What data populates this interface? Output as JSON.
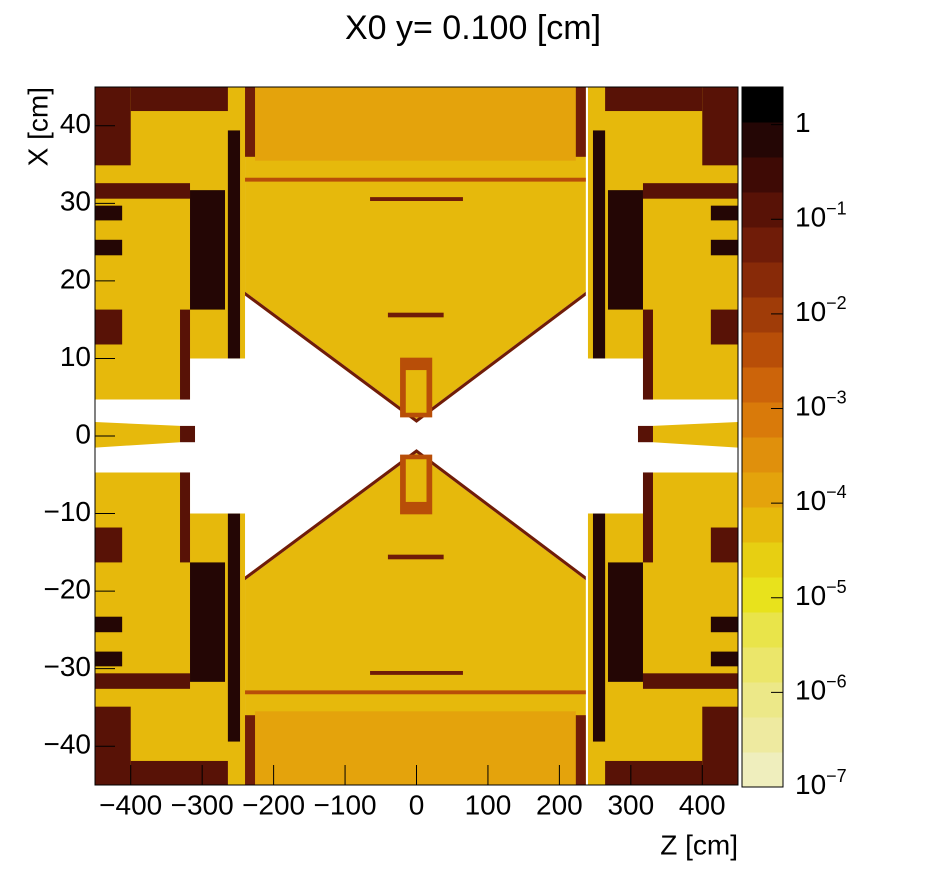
{
  "chart_data": {
    "type": "heatmap",
    "title": "X0 y=  0.100 [cm]",
    "xlabel": "Z [cm]",
    "ylabel": "X [cm]",
    "xlim": [
      -450,
      450
    ],
    "ylim": [
      -45,
      45
    ],
    "zlim": [
      1e-07,
      2.5
    ],
    "zlog": true,
    "xticks": [
      {
        "value": -400,
        "label": "−400"
      },
      {
        "value": -300,
        "label": "−300"
      },
      {
        "value": -200,
        "label": "−200"
      },
      {
        "value": -100,
        "label": "−100"
      },
      0,
      100,
      200,
      300,
      400
    ],
    "yticks": [
      {
        "value": -40,
        "label": "−40"
      },
      {
        "value": -30,
        "label": "−30"
      },
      {
        "value": -20,
        "label": "−20"
      },
      {
        "value": -10,
        "label": "−10"
      },
      0,
      10,
      20,
      30,
      40
    ],
    "zticks": [
      1,
      {
        "value": 0.1,
        "label": "10",
        "exponent": "−1"
      },
      {
        "value": 0.01,
        "label": "10",
        "exponent": "−2"
      },
      {
        "value": 0.001,
        "label": "10",
        "exponent": "−3"
      },
      {
        "value": 0.0001,
        "label": "10",
        "exponent": "−4"
      },
      {
        "value": 1e-05,
        "label": "10",
        "exponent": "−5"
      },
      {
        "value": 1e-06,
        "label": "10",
        "exponent": "−6"
      },
      {
        "value": 1e-07,
        "label": "10",
        "exponent": "−7"
      }
    ],
    "palette": [
      "#efeebd",
      "#eeeaa0",
      "#ece888",
      "#ebe66a",
      "#e9e44a",
      "#e8e21c",
      "#e7cf12",
      "#e6b90c",
      "#e4a30c",
      "#e0900c",
      "#d97a0a",
      "#cc640a",
      "#b84e08",
      "#a03c08",
      "#882a08",
      "#701c08",
      "#581206",
      "#3e0a05",
      "#240605",
      "#000000"
    ],
    "regions": [
      {
        "points": [
          [
            -450,
            4.7
          ],
          [
            -450,
            45
          ],
          [
            -240,
            45
          ],
          [
            -240,
            10
          ],
          [
            -317,
            10
          ],
          [
            -317,
            4.7
          ]
        ],
        "value": 6e-05
      },
      {
        "z": [
          -450,
          -400
        ],
        "x": [
          34.9,
          45
        ],
        "value": 0.15
      },
      {
        "z": [
          -400,
          -264
        ],
        "x": [
          41.9,
          45
        ],
        "value": 0.15
      },
      {
        "z": [
          -317,
          -268
        ],
        "x": [
          16.3,
          31.7
        ],
        "value": 1
      },
      {
        "z": [
          -450,
          -317
        ],
        "x": [
          30.6,
          32.6
        ],
        "value": 0.15
      },
      {
        "z": [
          -450,
          -412
        ],
        "x": [
          27.8,
          29.7
        ],
        "value": 1
      },
      {
        "z": [
          -450,
          -412
        ],
        "x": [
          23.3,
          25.3
        ],
        "value": 1
      },
      {
        "z": [
          -450,
          -412
        ],
        "x": [
          11.8,
          16.3
        ],
        "value": 0.15
      },
      {
        "z": [
          -331,
          -317
        ],
        "x": [
          4.7,
          16.3
        ],
        "value": 0.15
      },
      {
        "z": [
          -264,
          -247
        ],
        "x": [
          10,
          39.4
        ],
        "value": 1
      },
      {
        "points": [
          [
            -450,
            -4.7
          ],
          [
            -450,
            -45
          ],
          [
            -240,
            -45
          ],
          [
            -240,
            -10
          ],
          [
            -317,
            -10
          ],
          [
            -317,
            -4.7
          ]
        ],
        "value": 6e-05
      },
      {
        "z": [
          -450,
          -400
        ],
        "x": [
          -45,
          -34.9
        ],
        "value": 0.15
      },
      {
        "z": [
          -400,
          -264
        ],
        "x": [
          -45,
          -41.9
        ],
        "value": 0.15
      },
      {
        "z": [
          -317,
          -268
        ],
        "x": [
          -31.7,
          -16.3
        ],
        "value": 1
      },
      {
        "z": [
          -450,
          -317
        ],
        "x": [
          -32.6,
          -30.6
        ],
        "value": 0.15
      },
      {
        "z": [
          -450,
          -412
        ],
        "x": [
          -29.7,
          -27.8
        ],
        "value": 1
      },
      {
        "z": [
          -450,
          -412
        ],
        "x": [
          -25.3,
          -23.3
        ],
        "value": 1
      },
      {
        "z": [
          -450,
          -412
        ],
        "x": [
          -16.3,
          -11.8
        ],
        "value": 0.15
      },
      {
        "z": [
          -331,
          -317
        ],
        "x": [
          -16.3,
          -4.7
        ],
        "value": 0.15
      },
      {
        "z": [
          -264,
          -247
        ],
        "x": [
          -39.4,
          -10
        ],
        "value": 1
      },
      {
        "points": [
          [
            450,
            4.7
          ],
          [
            450,
            45
          ],
          [
            240,
            45
          ],
          [
            240,
            10
          ],
          [
            317,
            10
          ],
          [
            317,
            4.7
          ]
        ],
        "value": 6e-05
      },
      {
        "z": [
          400,
          450
        ],
        "x": [
          34.9,
          45
        ],
        "value": 0.15
      },
      {
        "z": [
          264,
          400
        ],
        "x": [
          41.9,
          45
        ],
        "value": 0.15
      },
      {
        "z": [
          268,
          317
        ],
        "x": [
          16.3,
          31.7
        ],
        "value": 1
      },
      {
        "z": [
          317,
          450
        ],
        "x": [
          30.6,
          32.6
        ],
        "value": 0.15
      },
      {
        "z": [
          412,
          450
        ],
        "x": [
          27.8,
          29.7
        ],
        "value": 1
      },
      {
        "z": [
          412,
          450
        ],
        "x": [
          23.3,
          25.3
        ],
        "value": 1
      },
      {
        "z": [
          412,
          450
        ],
        "x": [
          11.8,
          16.3
        ],
        "value": 0.15
      },
      {
        "z": [
          317,
          331
        ],
        "x": [
          4.7,
          16.3
        ],
        "value": 0.15
      },
      {
        "z": [
          247,
          264
        ],
        "x": [
          10,
          39.4
        ],
        "value": 1
      },
      {
        "points": [
          [
            450,
            -4.7
          ],
          [
            450,
            -45
          ],
          [
            240,
            -45
          ],
          [
            240,
            -10
          ],
          [
            317,
            -10
          ],
          [
            317,
            -4.7
          ]
        ],
        "value": 6e-05
      },
      {
        "z": [
          400,
          450
        ],
        "x": [
          -45,
          -34.9
        ],
        "value": 0.15
      },
      {
        "z": [
          264,
          400
        ],
        "x": [
          -45,
          -41.9
        ],
        "value": 0.15
      },
      {
        "z": [
          268,
          317
        ],
        "x": [
          -31.7,
          -16.3
        ],
        "value": 1
      },
      {
        "z": [
          317,
          450
        ],
        "x": [
          -32.6,
          -30.6
        ],
        "value": 0.15
      },
      {
        "z": [
          412,
          450
        ],
        "x": [
          -29.7,
          -27.8
        ],
        "value": 1
      },
      {
        "z": [
          412,
          450
        ],
        "x": [
          -25.3,
          -23.3
        ],
        "value": 1
      },
      {
        "z": [
          412,
          450
        ],
        "x": [
          -16.3,
          -11.8
        ],
        "value": 0.15
      },
      {
        "z": [
          317,
          331
        ],
        "x": [
          -16.3,
          -4.7
        ],
        "value": 0.15
      },
      {
        "z": [
          247,
          264
        ],
        "x": [
          -39.4,
          -10
        ],
        "value": 1
      },
      {
        "points": [
          [
            -450,
            -1.5
          ],
          [
            -450,
            1.8
          ],
          [
            -331,
            1.3
          ],
          [
            -331,
            -0.8
          ]
        ],
        "value": 6e-05
      },
      {
        "z": [
          -331,
          -310
        ],
        "x": [
          -0.8,
          1.3
        ],
        "value": 0.15
      },
      {
        "points": [
          [
            450,
            -1.5
          ],
          [
            450,
            1.8
          ],
          [
            331,
            1.3
          ],
          [
            331,
            -0.8
          ]
        ],
        "value": 6e-05
      },
      {
        "z": [
          310,
          331
        ],
        "x": [
          -0.8,
          1.3
        ],
        "value": 0.15
      },
      {
        "points": [
          [
            -240,
            18.6
          ],
          [
            -240,
            45
          ],
          [
            237,
            45
          ],
          [
            237,
            18.6
          ],
          [
            0,
            2.2
          ]
        ],
        "value": 6e-05
      },
      {
        "z": [
          -226,
          223
        ],
        "x": [
          35.5,
          45
        ],
        "value": 0.00015
      },
      {
        "z": [
          -240,
          -226
        ],
        "x": [
          36,
          45
        ],
        "value": 0.05
      },
      {
        "z": [
          223,
          237
        ],
        "x": [
          36,
          45
        ],
        "value": 0.05
      },
      {
        "points": [
          [
            -240,
            18.6
          ],
          [
            0,
            2.2
          ],
          [
            0,
            1.7
          ],
          [
            -240,
            18.1
          ]
        ],
        "value": 0.05
      },
      {
        "points": [
          [
            237,
            18.6
          ],
          [
            0,
            2.2
          ],
          [
            0,
            1.7
          ],
          [
            237,
            18.1
          ]
        ],
        "value": 0.05
      },
      {
        "z": [
          -240,
          237
        ],
        "x": [
          32.8,
          33.3
        ],
        "value": 0.004
      },
      {
        "z": [
          -40,
          38
        ],
        "x": [
          15.3,
          15.9
        ],
        "value": 0.05
      },
      {
        "z": [
          -65,
          65
        ],
        "x": [
          30.3,
          30.8
        ],
        "value": 0.05
      },
      {
        "z": [
          -23,
          22
        ],
        "x": [
          2.4,
          10.1
        ],
        "value": 0.004
      },
      {
        "z": [
          -15,
          14
        ],
        "x": [
          3,
          8.5
        ],
        "value": 6e-05
      },
      {
        "points": [
          [
            -240,
            -18.6
          ],
          [
            -240,
            -45
          ],
          [
            237,
            -45
          ],
          [
            237,
            -18.6
          ],
          [
            0,
            -2.2
          ]
        ],
        "value": 6e-05
      },
      {
        "z": [
          -226,
          223
        ],
        "x": [
          -45,
          -35.5
        ],
        "value": 0.00015
      },
      {
        "z": [
          -240,
          -226
        ],
        "x": [
          -45,
          -36
        ],
        "value": 0.05
      },
      {
        "z": [
          223,
          237
        ],
        "x": [
          -45,
          -36
        ],
        "value": 0.05
      },
      {
        "points": [
          [
            -240,
            -18.6
          ],
          [
            0,
            -2.2
          ],
          [
            0,
            -1.7
          ],
          [
            -240,
            -18.1
          ]
        ],
        "value": 0.05
      },
      {
        "points": [
          [
            237,
            -18.6
          ],
          [
            0,
            -2.2
          ],
          [
            0,
            -1.7
          ],
          [
            237,
            -18.1
          ]
        ],
        "value": 0.05
      },
      {
        "z": [
          -240,
          237
        ],
        "x": [
          -33.3,
          -32.8
        ],
        "value": 0.004
      },
      {
        "z": [
          -40,
          38
        ],
        "x": [
          -15.9,
          -15.3
        ],
        "value": 0.05
      },
      {
        "z": [
          -65,
          65
        ],
        "x": [
          -30.8,
          -30.3
        ],
        "value": 0.05
      },
      {
        "z": [
          -23,
          22
        ],
        "x": [
          -10.1,
          -2.4
        ],
        "value": 0.004
      },
      {
        "z": [
          -15,
          14
        ],
        "x": [
          -8.5,
          -3
        ],
        "value": 6e-05
      }
    ]
  }
}
